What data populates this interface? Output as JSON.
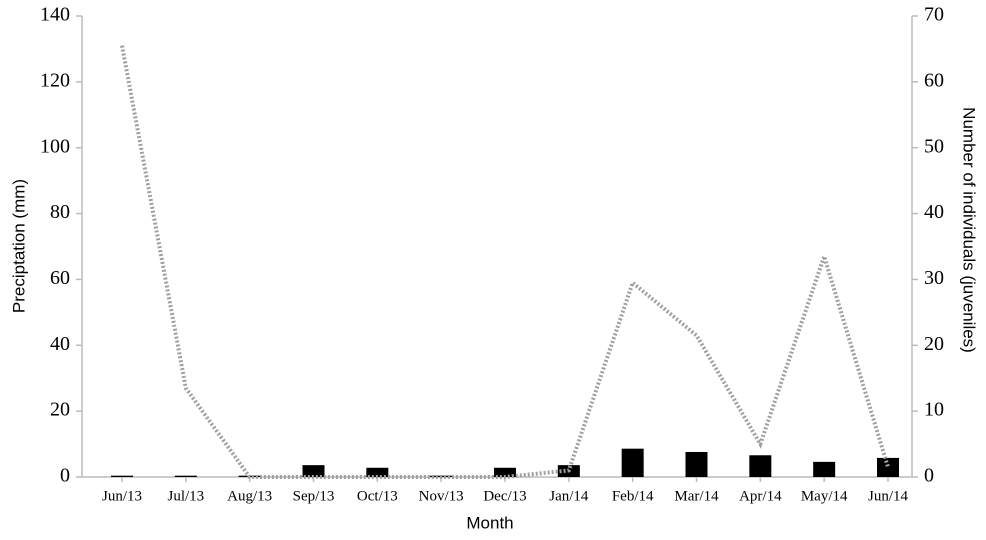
{
  "chart_data": {
    "type": "combo",
    "x_label": "Month",
    "y_label": "Preciptation (mm)",
    "y2_label": "Number of individuals (juveniles)",
    "categories": [
      "Jun/13",
      "Jul/13",
      "Aug/13",
      "Sep/13",
      "Oct/13",
      "Nov/13",
      "Dec/13",
      "Jan/14",
      "Feb/14",
      "Mar/14",
      "Apr/14",
      "May/14",
      "Jun/14"
    ],
    "series": [
      {
        "type": "bar",
        "axis": "y2",
        "color": "#000000",
        "values": [
          0.2,
          0.2,
          0.2,
          1.8,
          1.4,
          0.2,
          1.4,
          1.8,
          4.3,
          3.8,
          3.3,
          2.3,
          2.9
        ]
      },
      {
        "type": "line",
        "axis": "y",
        "color": "#a0a0a0",
        "dashed": true,
        "values": [
          131,
          27,
          0,
          0,
          0,
          0,
          0,
          2,
          59,
          43,
          10,
          67,
          3
        ]
      }
    ],
    "ylim": [
      0,
      140
    ],
    "yticks": [
      0,
      20,
      40,
      60,
      80,
      100,
      120,
      140
    ],
    "y2lim": [
      0,
      70
    ],
    "y2ticks": [
      0,
      10,
      20,
      30,
      40,
      50,
      60,
      70
    ],
    "grid": false
  }
}
